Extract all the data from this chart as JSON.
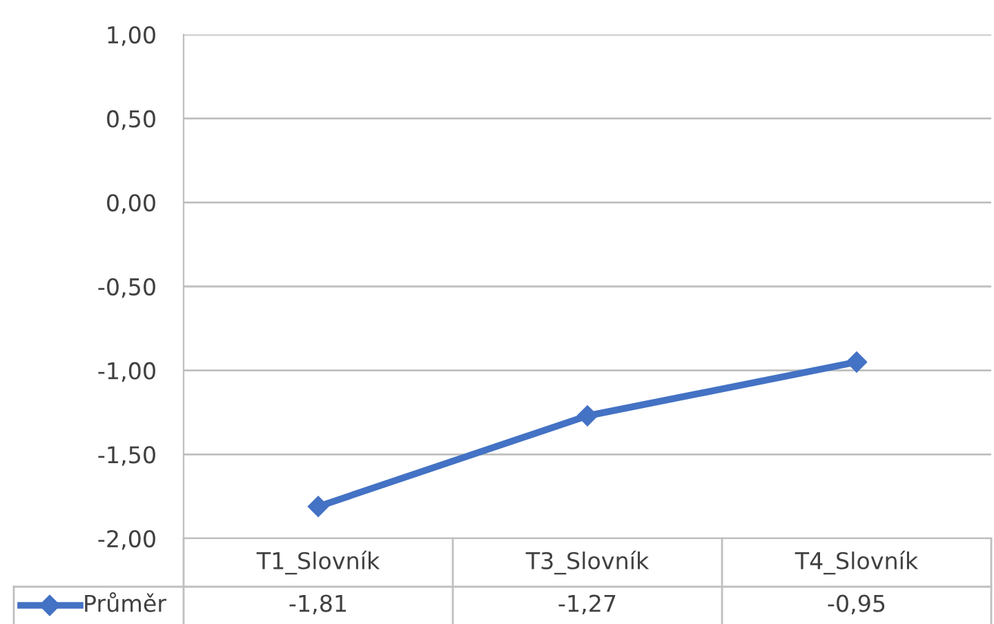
{
  "chart_data": {
    "type": "line",
    "categories": [
      "T1_Slovník",
      "T3_Slovník",
      "T4_Slovník"
    ],
    "series": [
      {
        "name": "Průměr",
        "color": "#4472c4",
        "values": [
          -1.81,
          -1.27,
          -0.95
        ],
        "value_labels": [
          "-1,81",
          "-1,27",
          "-0,95"
        ]
      }
    ],
    "ylim": [
      -2,
      1
    ],
    "yticks": [
      {
        "value": -2,
        "label": "-2,00"
      },
      {
        "value": -1.5,
        "label": "-1,50"
      },
      {
        "value": -1,
        "label": "-1,00"
      },
      {
        "value": -0.5,
        "label": "-0,50"
      },
      {
        "value": 0,
        "label": "0,00"
      },
      {
        "value": 0.5,
        "label": "0,50"
      },
      {
        "value": 1,
        "label": "1,00"
      }
    ],
    "grid": "y",
    "legend": "bottom",
    "marker": "diamond",
    "line_style": "solid"
  }
}
